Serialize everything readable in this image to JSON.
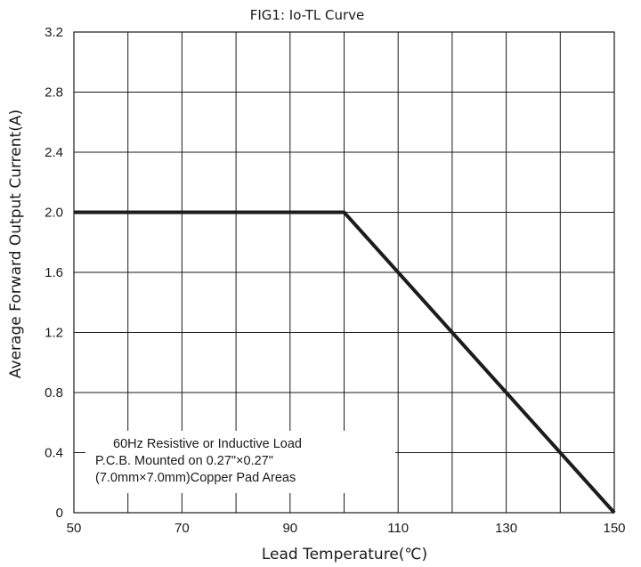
{
  "chart_data": {
    "type": "line",
    "title": "FIG1:  Io-TL Curve",
    "xlabel": "Lead Temperature(℃)",
    "ylabel": "Average Forward Output Current(A)",
    "xlim": [
      50,
      150
    ],
    "ylim": [
      0,
      3.2
    ],
    "xticks": [
      50,
      70,
      90,
      110,
      130,
      150
    ],
    "yticks": [
      "0",
      "0.4",
      "0.8",
      "1.2",
      "1.6",
      "2.0",
      "2.4",
      "2.8",
      "3.2"
    ],
    "x_minor_step": 10,
    "y_minor_step": 0.4,
    "grid": true,
    "series": [
      {
        "x": [
          50,
          100,
          150
        ],
        "y": [
          2.0,
          2.0,
          0
        ]
      }
    ],
    "annotation": [
      "60Hz Resistive or Inductive Load",
      "P.C.B. Mounted on 0.27\"×0.27\"",
      "(7.0mm×7.0mm)Copper Pad Areas"
    ],
    "colors": {
      "line": "#1c1c1c",
      "grid": "#1a1a1a"
    }
  }
}
